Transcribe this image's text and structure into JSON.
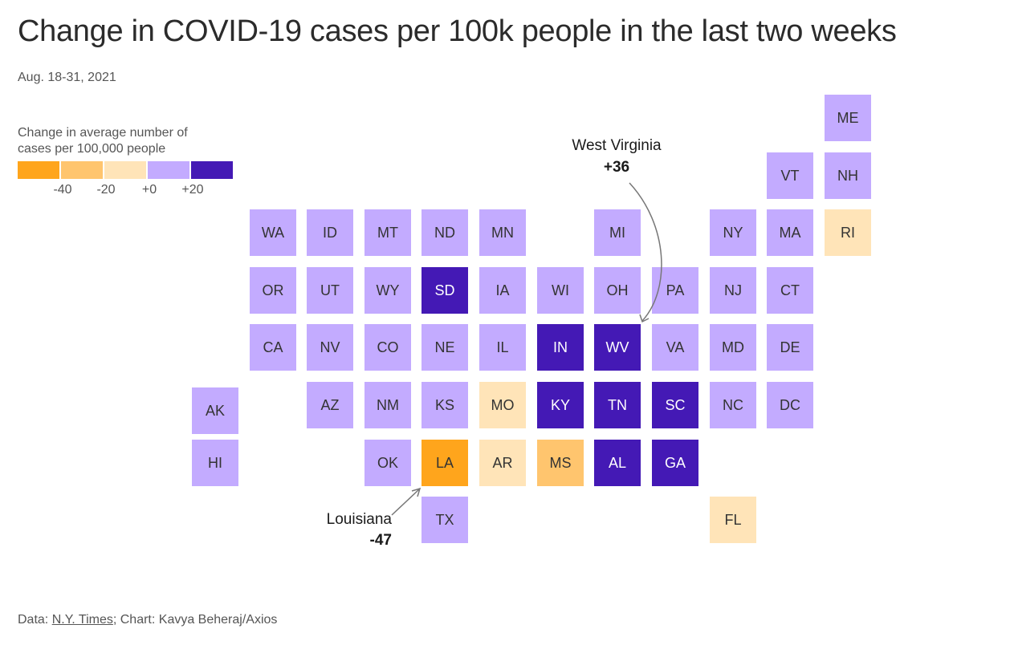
{
  "title": "Change in COVID-19 cases per 100k people in the last two weeks",
  "subtitle": "Aug. 18-31, 2021",
  "legend": {
    "title_line1": "Change in average number of",
    "title_line2": "cases per 100,000 people",
    "colors": [
      "#ffa51c",
      "#ffc56e",
      "#ffe4b8",
      "#c3abff",
      "#4419b5"
    ],
    "ticks": [
      "-40",
      "-20",
      "+0",
      "+20"
    ]
  },
  "color_map": {
    "dark_orange": "#ffa51c",
    "mid_orange": "#ffc56e",
    "light_orange": "#ffe4b8",
    "light_purple": "#c3abff",
    "dark_purple": "#4419b5"
  },
  "states": [
    {
      "abbr": "ME",
      "row": 0,
      "col": 10,
      "color": "light_purple"
    },
    {
      "abbr": "VT",
      "row": 1,
      "col": 9,
      "color": "light_purple"
    },
    {
      "abbr": "NH",
      "row": 1,
      "col": 10,
      "color": "light_purple"
    },
    {
      "abbr": "WA",
      "row": 2,
      "col": 1,
      "color": "light_purple"
    },
    {
      "abbr": "ID",
      "row": 2,
      "col": 2,
      "color": "light_purple"
    },
    {
      "abbr": "MT",
      "row": 2,
      "col": 3,
      "color": "light_purple"
    },
    {
      "abbr": "ND",
      "row": 2,
      "col": 4,
      "color": "light_purple"
    },
    {
      "abbr": "MN",
      "row": 2,
      "col": 5,
      "color": "light_purple"
    },
    {
      "abbr": "MI",
      "row": 2,
      "col": 7,
      "color": "light_purple"
    },
    {
      "abbr": "NY",
      "row": 2,
      "col": 8,
      "color": "light_purple"
    },
    {
      "abbr": "MA",
      "row": 2,
      "col": 9,
      "color": "light_purple"
    },
    {
      "abbr": "RI",
      "row": 2,
      "col": 10,
      "color": "light_orange"
    },
    {
      "abbr": "OR",
      "row": 3,
      "col": 1,
      "color": "light_purple"
    },
    {
      "abbr": "UT",
      "row": 3,
      "col": 2,
      "color": "light_purple"
    },
    {
      "abbr": "WY",
      "row": 3,
      "col": 3,
      "color": "light_purple"
    },
    {
      "abbr": "SD",
      "row": 3,
      "col": 4,
      "color": "dark_purple"
    },
    {
      "abbr": "IA",
      "row": 3,
      "col": 5,
      "color": "light_purple"
    },
    {
      "abbr": "WI",
      "row": 3,
      "col": 6,
      "color": "light_purple"
    },
    {
      "abbr": "OH",
      "row": 3,
      "col": 7,
      "color": "light_purple"
    },
    {
      "abbr": "PA",
      "row": 3,
      "col": 8,
      "color": "light_purple",
      "offset": -1
    },
    {
      "abbr": "NJ",
      "row": 3,
      "col": 8,
      "color": "light_purple"
    },
    {
      "abbr": "CT",
      "row": 3,
      "col": 9,
      "color": "light_purple"
    },
    {
      "abbr": "CA",
      "row": 4,
      "col": 1,
      "color": "light_purple"
    },
    {
      "abbr": "NV",
      "row": 4,
      "col": 2,
      "color": "light_purple"
    },
    {
      "abbr": "CO",
      "row": 4,
      "col": 3,
      "color": "light_purple"
    },
    {
      "abbr": "NE",
      "row": 4,
      "col": 4,
      "color": "light_purple"
    },
    {
      "abbr": "IL",
      "row": 4,
      "col": 5,
      "color": "light_purple"
    },
    {
      "abbr": "IN",
      "row": 4,
      "col": 6,
      "color": "dark_purple"
    },
    {
      "abbr": "WV",
      "row": 4,
      "col": 7,
      "color": "dark_purple"
    },
    {
      "abbr": "VA",
      "row": 4,
      "col": 8,
      "color": "light_purple",
      "offset": -1
    },
    {
      "abbr": "MD",
      "row": 4,
      "col": 8,
      "color": "light_purple"
    },
    {
      "abbr": "DE",
      "row": 4,
      "col": 9,
      "color": "light_purple"
    },
    {
      "abbr": "AK",
      "row": 5,
      "col": 0,
      "color": "light_purple",
      "dy": 7
    },
    {
      "abbr": "AZ",
      "row": 5,
      "col": 2,
      "color": "light_purple"
    },
    {
      "abbr": "NM",
      "row": 5,
      "col": 3,
      "color": "light_purple"
    },
    {
      "abbr": "KS",
      "row": 5,
      "col": 4,
      "color": "light_purple"
    },
    {
      "abbr": "MO",
      "row": 5,
      "col": 5,
      "color": "light_orange"
    },
    {
      "abbr": "KY",
      "row": 5,
      "col": 6,
      "color": "dark_purple"
    },
    {
      "abbr": "TN",
      "row": 5,
      "col": 7,
      "color": "dark_purple"
    },
    {
      "abbr": "SC",
      "row": 5,
      "col": 8,
      "color": "dark_purple",
      "offset": -1
    },
    {
      "abbr": "NC",
      "row": 5,
      "col": 8,
      "color": "light_purple"
    },
    {
      "abbr": "DC",
      "row": 5,
      "col": 9,
      "color": "light_purple"
    },
    {
      "abbr": "HI",
      "row": 6,
      "col": 0,
      "color": "light_purple"
    },
    {
      "abbr": "OK",
      "row": 6,
      "col": 3,
      "color": "light_purple"
    },
    {
      "abbr": "LA",
      "row": 6,
      "col": 4,
      "color": "dark_orange"
    },
    {
      "abbr": "AR",
      "row": 6,
      "col": 5,
      "color": "light_orange"
    },
    {
      "abbr": "MS",
      "row": 6,
      "col": 6,
      "color": "mid_orange"
    },
    {
      "abbr": "AL",
      "row": 6,
      "col": 7,
      "color": "dark_purple"
    },
    {
      "abbr": "GA",
      "row": 6,
      "col": 8,
      "color": "dark_purple",
      "offset": -1
    },
    {
      "abbr": "TX",
      "row": 7,
      "col": 4,
      "color": "light_purple"
    },
    {
      "abbr": "FL",
      "row": 7,
      "col": 8,
      "color": "light_orange"
    }
  ],
  "annotations": {
    "west_virginia": {
      "name": "West Virginia",
      "value": "+36"
    },
    "louisiana": {
      "name": "Louisiana",
      "value": "-47"
    }
  },
  "footer": {
    "prefix": "Data: ",
    "source": "N.Y. Times",
    "suffix": "; Chart: Kavya Beheraj/Axios"
  }
}
